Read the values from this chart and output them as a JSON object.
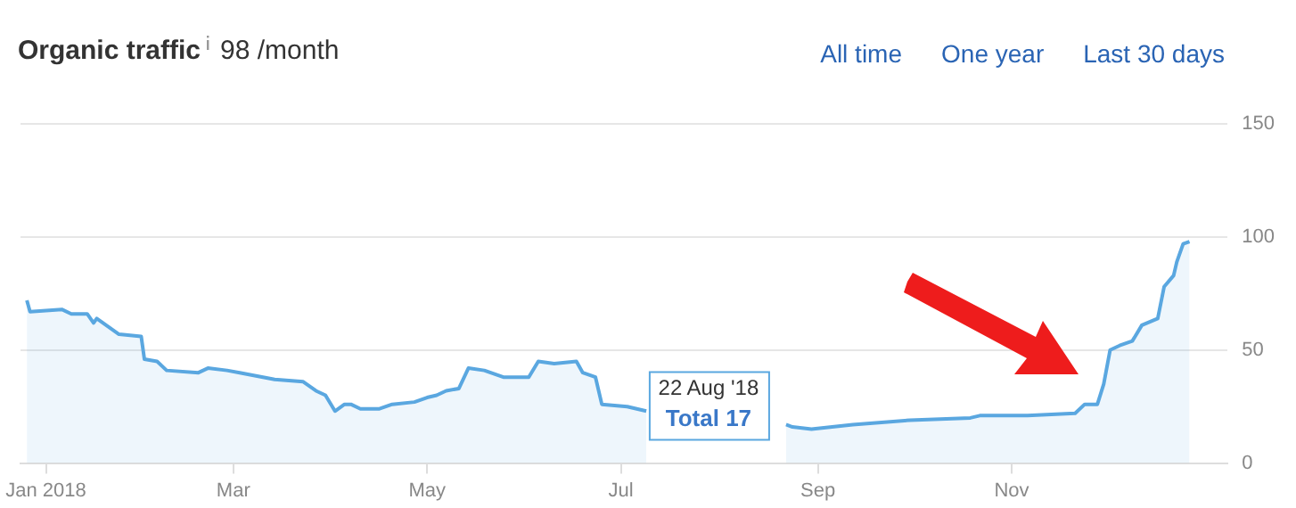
{
  "chart_data": {
    "type": "area",
    "title": "Organic traffic",
    "subtitle": "98 /month",
    "annotations": [
      {
        "text": "22 Aug '18\nTotal 17",
        "x": "2018-08-22",
        "y": 17
      },
      "All time",
      "One year",
      "Last 30 days"
    ],
    "x": [
      "2017-12-26",
      "2017-12-27",
      "2018-01-06",
      "2018-01-09",
      "2018-01-14",
      "2018-01-16",
      "2018-01-17",
      "2018-01-24",
      "2018-01-31",
      "2018-02-01",
      "2018-02-05",
      "2018-02-08",
      "2018-02-18",
      "2018-02-21",
      "2018-02-27",
      "2018-03-03",
      "2018-03-14",
      "2018-03-23",
      "2018-03-27",
      "2018-03-30",
      "2018-04-02",
      "2018-04-05",
      "2018-04-07",
      "2018-04-10",
      "2018-04-16",
      "2018-04-20",
      "2018-04-27",
      "2018-05-01",
      "2018-05-04",
      "2018-05-07",
      "2018-05-11",
      "2018-05-14",
      "2018-05-19",
      "2018-05-25",
      "2018-06-02",
      "2018-06-05",
      "2018-06-10",
      "2018-06-17",
      "2018-06-19",
      "2018-06-23",
      "2018-06-25",
      "2018-07-03",
      "2018-07-09",
      "2018-07-20",
      "2018-08-22",
      "2018-08-24",
      "2018-08-30",
      "2018-09-12",
      "2018-09-30",
      "2018-10-19",
      "2018-10-22",
      "2018-11-06",
      "2018-11-21",
      "2018-11-24",
      "2018-11-28",
      "2018-11-30",
      "2018-12-02",
      "2018-12-05",
      "2018-12-09",
      "2018-12-12",
      "2018-12-17",
      "2018-12-19",
      "2018-12-22",
      "2018-12-23",
      "2018-12-25",
      "2018-12-27"
    ],
    "series": [
      {
        "color": "#5aa7e0",
        "values": [
          72,
          67,
          68,
          66,
          66,
          62,
          64,
          57,
          56,
          46,
          45,
          41,
          40,
          42,
          41,
          40,
          37,
          36,
          32,
          30,
          23,
          26,
          26,
          24,
          24,
          26,
          27,
          29,
          30,
          32,
          33,
          42,
          41,
          38,
          38,
          45,
          44,
          45,
          40,
          38,
          26,
          25,
          23,
          null,
          17,
          16,
          15,
          17,
          19,
          20,
          21,
          21,
          22,
          26,
          26,
          35,
          50,
          52,
          54,
          61,
          64,
          78,
          83,
          89,
          97,
          98
        ]
      }
    ],
    "xlim": [
      "2017-12-24",
      "2019-01-08"
    ],
    "xticks": [
      {
        "value": "2018-01-01",
        "label": "Jan 2018"
      },
      {
        "value": "2018-03-01",
        "label": "Mar"
      },
      {
        "value": "2018-05-01",
        "label": "May"
      },
      {
        "value": "2018-07-01",
        "label": "Jul"
      },
      {
        "value": "2018-09-01",
        "label": "Sep"
      },
      {
        "value": "2018-11-01",
        "label": "Nov"
      }
    ],
    "ylim": [
      0,
      150
    ],
    "yticks": [
      0,
      50,
      100,
      150
    ],
    "grid": "y",
    "legend": false,
    "marker": "none",
    "line_style": "solid"
  }
}
